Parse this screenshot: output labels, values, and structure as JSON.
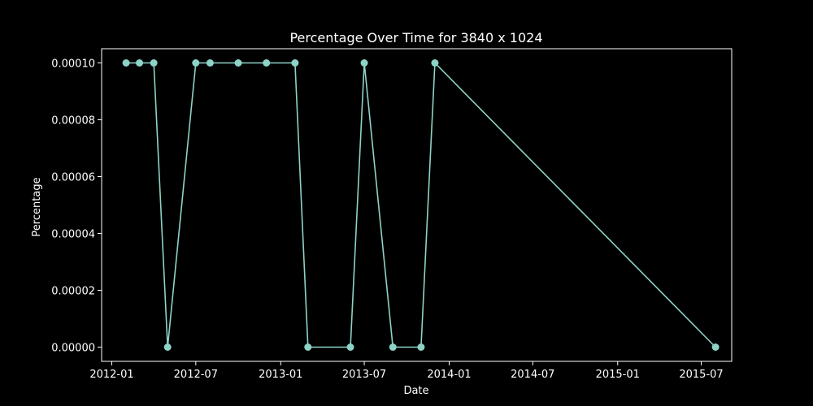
{
  "chart_data": {
    "type": "line",
    "title": "Percentage Over Time for 3840 x 1024",
    "xlabel": "Date",
    "ylabel": "Percentage",
    "x_ticks": [
      "2012-01",
      "2012-07",
      "2013-01",
      "2013-07",
      "2014-01",
      "2014-07",
      "2015-01",
      "2015-07"
    ],
    "y_ticks": [
      "0.00000",
      "0.00002",
      "0.00004",
      "0.00006",
      "0.00008",
      "0.00010"
    ],
    "xlim": [
      "2011-12-10",
      "2015-09-05"
    ],
    "ylim": [
      -5e-06,
      0.000105
    ],
    "grid": false,
    "series": [
      {
        "color": "#8dd3c7",
        "marker": "circle",
        "points": [
          {
            "x": "2012-02-01",
            "y": 0.0001
          },
          {
            "x": "2012-03-01",
            "y": 0.0001
          },
          {
            "x": "2012-04-01",
            "y": 0.0001
          },
          {
            "x": "2012-05-01",
            "y": 0.0
          },
          {
            "x": "2012-07-01",
            "y": 0.0001
          },
          {
            "x": "2012-08-01",
            "y": 0.0001
          },
          {
            "x": "2012-10-01",
            "y": 0.0001
          },
          {
            "x": "2012-12-01",
            "y": 0.0001
          },
          {
            "x": "2013-02-01",
            "y": 0.0001
          },
          {
            "x": "2013-03-01",
            "y": 0.0
          },
          {
            "x": "2013-06-01",
            "y": 0.0
          },
          {
            "x": "2013-07-01",
            "y": 0.0001
          },
          {
            "x": "2013-09-01",
            "y": 0.0
          },
          {
            "x": "2013-11-01",
            "y": 0.0
          },
          {
            "x": "2013-12-01",
            "y": 0.0001
          },
          {
            "x": "2015-08-01",
            "y": 0.0
          }
        ]
      }
    ]
  },
  "colors": {
    "background": "#000000",
    "foreground": "#ffffff",
    "series": "#8dd3c7"
  }
}
